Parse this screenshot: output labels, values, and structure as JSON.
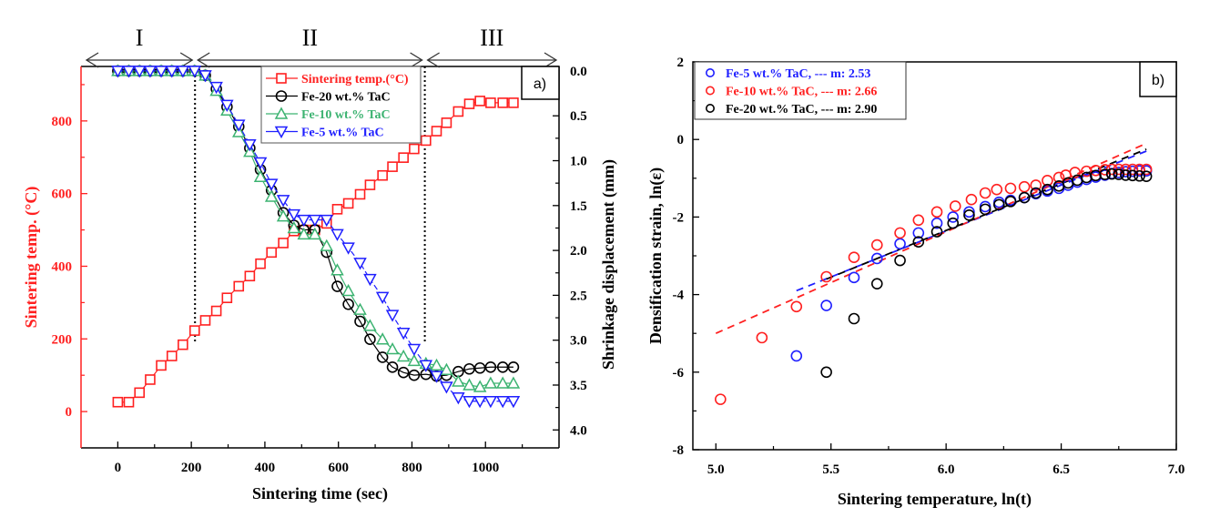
{
  "chart_data": [
    {
      "panel": "a)",
      "type": "line",
      "xlabel": "Sintering time (sec)",
      "ylabel_left": "Sintering temp. (°C)",
      "ylabel_right": "Shrinkage displacement (mm)",
      "xlim": [
        -100,
        1200
      ],
      "xticks": [
        0,
        200,
        400,
        600,
        800,
        1000
      ],
      "ylim_left": [
        -100,
        950
      ],
      "yticks_left": [
        0,
        200,
        400,
        600,
        800
      ],
      "ylim_right": [
        4.2,
        -0.05
      ],
      "yticks_right": [
        "0.0",
        "0.5",
        "1.0",
        "1.5",
        "2.0",
        "2.5",
        "3.0",
        "3.5",
        "4.0"
      ],
      "yticks_right_values": [
        0.0,
        0.5,
        1.0,
        1.5,
        2.0,
        2.5,
        3.0,
        3.5,
        4.0
      ],
      "regions": [
        {
          "label": "I",
          "from": -100,
          "to": 210
        },
        {
          "label": "II",
          "from": 210,
          "to": 835
        },
        {
          "label": "III",
          "from": 835,
          "to": 1200
        }
      ],
      "region_dividers": [
        210,
        835
      ],
      "legend_position": "top-center",
      "series": [
        {
          "name": "Sintering temp.(°C)",
          "axis": "left",
          "color": "#ff2020",
          "marker": "square",
          "x": [
            0,
            30,
            59,
            88,
            118,
            147,
            177,
            209,
            238,
            268,
            297,
            329,
            359,
            388,
            418,
            450,
            479,
            506,
            536,
            568,
            597,
            627,
            659,
            686,
            720,
            747,
            777,
            806,
            838,
            867,
            894,
            926,
            956,
            985,
            1014,
            1047,
            1076
          ],
          "y": [
            26,
            26,
            52,
            88,
            127,
            153,
            184,
            223,
            251,
            277,
            313,
            345,
            373,
            407,
            438,
            464,
            497,
            500,
            500,
            518,
            557,
            573,
            598,
            624,
            650,
            674,
            699,
            723,
            746,
            772,
            795,
            826,
            847,
            855,
            850,
            850,
            850
          ]
        },
        {
          "name": "Fe-20 wt.% TaC",
          "axis": "right",
          "color": "#000000",
          "marker": "circle",
          "x": [
            0,
            30,
            59,
            88,
            118,
            147,
            177,
            209,
            238,
            268,
            297,
            329,
            359,
            388,
            418,
            450,
            479,
            506,
            536,
            568,
            597,
            627,
            659,
            686,
            720,
            747,
            777,
            806,
            838,
            867,
            894,
            926,
            956,
            985,
            1014,
            1047,
            1076
          ],
          "y": [
            0.0,
            0.0,
            0.0,
            0.0,
            0.0,
            0.0,
            0.0,
            0.0,
            0.05,
            0.2,
            0.4,
            0.62,
            0.86,
            1.1,
            1.33,
            1.58,
            1.72,
            1.77,
            1.77,
            2.02,
            2.4,
            2.6,
            2.79,
            2.99,
            3.19,
            3.3,
            3.36,
            3.39,
            3.38,
            3.4,
            3.39,
            3.35,
            3.32,
            3.31,
            3.3,
            3.3,
            3.3
          ]
        },
        {
          "name": "Fe-10 wt.% TaC",
          "axis": "right",
          "color": "#3cb371",
          "marker": "triangle-up",
          "x": [
            0,
            30,
            59,
            88,
            118,
            147,
            177,
            209,
            238,
            268,
            297,
            329,
            359,
            388,
            418,
            450,
            479,
            506,
            536,
            568,
            597,
            627,
            659,
            686,
            720,
            747,
            777,
            806,
            838,
            867,
            894,
            926,
            956,
            985,
            1014,
            1047,
            1076
          ],
          "y": [
            0.0,
            0.0,
            0.0,
            0.0,
            0.0,
            0.0,
            0.0,
            0.0,
            0.05,
            0.22,
            0.44,
            0.68,
            0.9,
            1.18,
            1.4,
            1.62,
            1.75,
            1.82,
            1.82,
            1.95,
            2.22,
            2.45,
            2.66,
            2.84,
            2.99,
            3.1,
            3.18,
            3.23,
            3.26,
            3.28,
            3.33,
            3.46,
            3.5,
            3.52,
            3.48,
            3.48,
            3.48
          ]
        },
        {
          "name": "Fe-5 wt.% TaC",
          "axis": "right",
          "color": "#1f1fff",
          "marker": "triangle-down",
          "x": [
            0,
            30,
            59,
            88,
            118,
            147,
            177,
            209,
            238,
            268,
            297,
            329,
            359,
            388,
            418,
            450,
            479,
            506,
            536,
            568,
            597,
            627,
            659,
            686,
            720,
            747,
            777,
            806,
            838,
            867,
            894,
            926,
            956,
            985,
            1014,
            1047,
            1076
          ],
          "y": [
            0.0,
            0.0,
            0.0,
            0.0,
            0.0,
            0.0,
            0.0,
            0.0,
            0.05,
            0.18,
            0.38,
            0.6,
            0.82,
            1.02,
            1.26,
            1.44,
            1.6,
            1.66,
            1.66,
            1.66,
            1.82,
            1.97,
            2.14,
            2.32,
            2.52,
            2.72,
            2.92,
            3.1,
            3.28,
            3.4,
            3.52,
            3.64,
            3.68,
            3.68,
            3.68,
            3.68,
            3.68
          ]
        }
      ]
    },
    {
      "panel": "b)",
      "type": "scatter",
      "xlabel": "Sintering temperature, ln(t)",
      "ylabel": "Densification strain, ln(ε)",
      "xlim": [
        4.9,
        7.0
      ],
      "xticks": [
        "5.0",
        "5.5",
        "6.0",
        "6.5",
        "7.0"
      ],
      "xticks_values": [
        5.0,
        5.5,
        6.0,
        6.5,
        7.0
      ],
      "ylim": [
        -8,
        2
      ],
      "yticks": [
        2,
        0,
        -2,
        -4,
        -6,
        -8
      ],
      "legend_position": "top-left",
      "series": [
        {
          "name": "Fe-5 wt.% TaC, --- m: 2.53",
          "color": "#1f1fff",
          "marker": "circle",
          "x": [
            5.35,
            5.48,
            5.6,
            5.7,
            5.8,
            5.88,
            5.96,
            6.03,
            6.1,
            6.17,
            6.23,
            6.28,
            6.34,
            6.39,
            6.44,
            6.49,
            6.53,
            6.57,
            6.61,
            6.65,
            6.69,
            6.72,
            6.75,
            6.78,
            6.81,
            6.84,
            6.87
          ],
          "y": [
            -5.58,
            -4.28,
            -3.56,
            -3.07,
            -2.69,
            -2.41,
            -2.16,
            -2.0,
            -1.87,
            -1.73,
            -1.62,
            -1.57,
            -1.5,
            -1.4,
            -1.33,
            -1.26,
            -1.18,
            -1.1,
            -1.03,
            -0.97,
            -0.92,
            -0.88,
            -0.85,
            -0.83,
            -0.82,
            -0.81,
            -0.81
          ],
          "fit": {
            "x": [
              5.35,
              6.87
            ],
            "y": [
              -3.9,
              -0.3
            ]
          }
        },
        {
          "name": "Fe-10 wt.% TaC, --- m: 2.66",
          "color": "#ff2020",
          "marker": "circle",
          "x": [
            5.02,
            5.2,
            5.35,
            5.48,
            5.6,
            5.7,
            5.8,
            5.88,
            5.96,
            6.04,
            6.11,
            6.17,
            6.22,
            6.28,
            6.34,
            6.39,
            6.44,
            6.49,
            6.52,
            6.56,
            6.61,
            6.65,
            6.69,
            6.72,
            6.75,
            6.78,
            6.81,
            6.84,
            6.87
          ],
          "y": [
            -6.7,
            -5.11,
            -4.31,
            -3.54,
            -3.04,
            -2.72,
            -2.41,
            -2.08,
            -1.87,
            -1.72,
            -1.55,
            -1.38,
            -1.29,
            -1.26,
            -1.22,
            -1.18,
            -1.06,
            -0.98,
            -0.92,
            -0.85,
            -0.82,
            -0.8,
            -0.78,
            -0.77,
            -0.77,
            -0.77,
            -0.77,
            -0.77,
            -0.77
          ],
          "fit": {
            "x": [
              5.0,
              6.87
            ],
            "y": [
              -5.0,
              -0.1
            ]
          }
        },
        {
          "name": "Fe-20 wt.% TaC, --- m: 2.90",
          "color": "#000000",
          "marker": "circle",
          "x": [
            5.48,
            5.6,
            5.7,
            5.8,
            5.88,
            5.96,
            6.03,
            6.1,
            6.17,
            6.23,
            6.28,
            6.34,
            6.39,
            6.44,
            6.49,
            6.53,
            6.57,
            6.61,
            6.65,
            6.69,
            6.72,
            6.75,
            6.78,
            6.81,
            6.84,
            6.87
          ],
          "y": [
            -6.0,
            -4.62,
            -3.72,
            -3.12,
            -2.64,
            -2.38,
            -2.16,
            -1.95,
            -1.8,
            -1.68,
            -1.6,
            -1.5,
            -1.38,
            -1.29,
            -1.2,
            -1.12,
            -1.05,
            -0.98,
            -0.93,
            -0.9,
            -0.89,
            -0.9,
            -0.92,
            -0.93,
            -0.94,
            -0.95
          ],
          "fit": {
            "x": [
              5.48,
              6.87
            ],
            "y": [
              -3.6,
              -0.25
            ]
          }
        }
      ]
    }
  ],
  "labels": {
    "panel_a": "a)",
    "panel_b": "b)"
  }
}
